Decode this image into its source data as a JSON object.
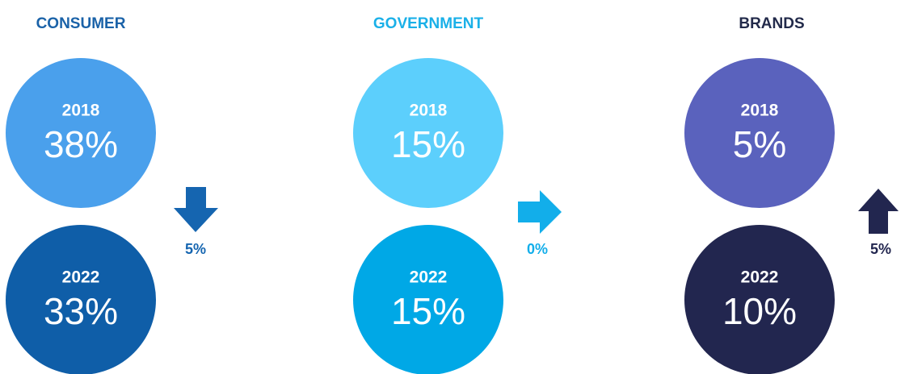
{
  "segments": [
    {
      "title": "CONSUMER",
      "items": [
        {
          "year": "2018",
          "value": "38%"
        },
        {
          "year": "2022",
          "value": "33%"
        }
      ],
      "change": "5%"
    },
    {
      "title": "GOVERNMENT",
      "items": [
        {
          "year": "2018",
          "value": "15%"
        },
        {
          "year": "2022",
          "value": "15%"
        }
      ],
      "change": "0%"
    },
    {
      "title": "BRANDS",
      "items": [
        {
          "year": "2018",
          "value": "5%"
        },
        {
          "year": "2022",
          "value": "10%"
        }
      ],
      "change": "5%"
    }
  ]
}
